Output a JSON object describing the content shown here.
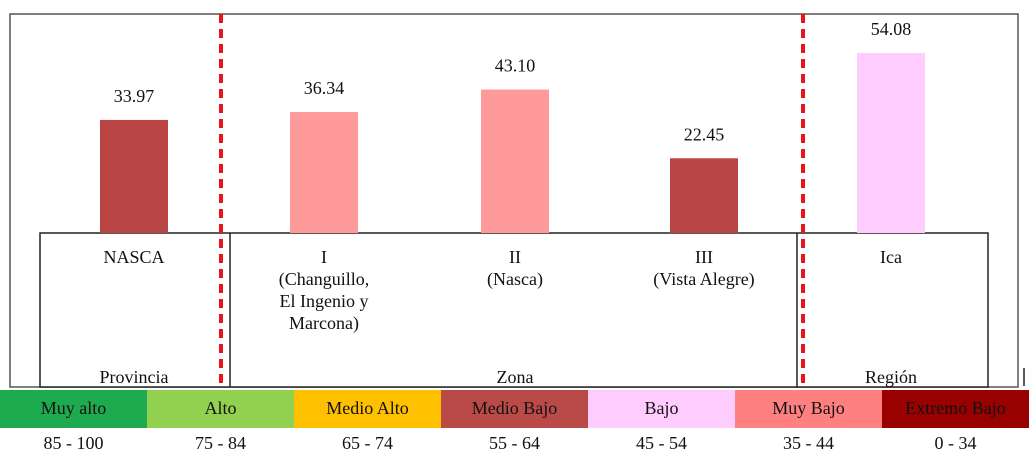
{
  "chart_data": {
    "type": "bar",
    "categories": [
      [
        "NASCA"
      ],
      [
        "I",
        "(Changuillo,",
        "El Ingenio y",
        "Marcona)"
      ],
      [
        "II",
        "(Nasca)"
      ],
      [
        "III",
        "(Vista Alegre)"
      ],
      [
        "Ica"
      ]
    ],
    "values": [
      33.97,
      36.34,
      43.1,
      22.45,
      54.08
    ],
    "value_labels": [
      "33.97",
      "36.34",
      "43.10",
      "22.45",
      "54.08"
    ],
    "colors": [
      "#b94444",
      "#ff9a9a",
      "#ff9a9a",
      "#b94444",
      "#ffccff"
    ],
    "groups": [
      "Provincia",
      "Zona",
      "Región"
    ],
    "legend": [
      {
        "name": "Muy alto",
        "range": "85 - 100",
        "color": "#1eaa4e"
      },
      {
        "name": "Alto",
        "range": "75 - 84",
        "color": "#92d050"
      },
      {
        "name": "Medio Alto",
        "range": "65 - 74",
        "color": "#ffc000"
      },
      {
        "name": "Medio Bajo",
        "range": "55 - 64",
        "color": "#b94a48"
      },
      {
        "name": "Bajo",
        "range": "45 - 54",
        "color": "#ffccff"
      },
      {
        "name": "Muy Bajo",
        "range": "35 - 44",
        "color": "#ff8080"
      },
      {
        "name": "Extremo Bajo",
        "range": "0 - 34",
        "color": "#990000"
      }
    ]
  }
}
